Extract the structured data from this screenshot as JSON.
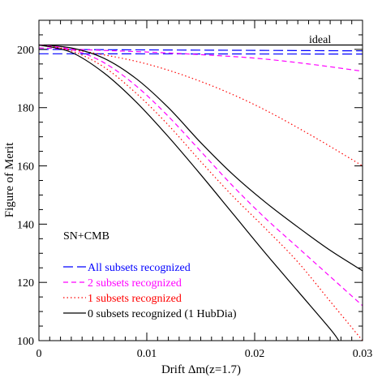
{
  "chart_data": {
    "type": "line",
    "xlabel": "Drift Δm(z=1.7)",
    "ylabel": "Figure of Merit",
    "xlim": [
      0,
      0.03
    ],
    "ylim": [
      100,
      210
    ],
    "x_ticks": [
      0,
      0.01,
      0.02,
      0.03
    ],
    "x_tick_labels": [
      "0",
      "0.01",
      "0.02",
      "0.03"
    ],
    "y_ticks": [
      100,
      120,
      140,
      160,
      180,
      200
    ],
    "y_tick_labels": [
      "100",
      "120",
      "140",
      "160",
      "180",
      "200"
    ],
    "grid": false,
    "annotations": {
      "ideal": "ideal",
      "probe": "SN+CMB"
    },
    "legend": {
      "placement": "bottom-left",
      "entries": [
        {
          "label": "All subsets recognized",
          "color": "#0000ff",
          "dash": "long-dash"
        },
        {
          "label": "2 subsets recognized",
          "color": "#ff00ff",
          "dash": "short-dash"
        },
        {
          "label": "1 subsets recognized",
          "color": "#ff0000",
          "dash": "dot"
        },
        {
          "label": "0 subsets recognized (1 HubDia)",
          "color": "#000000",
          "dash": "solid"
        }
      ]
    },
    "series": [
      {
        "color": "#000000",
        "dash": "solid",
        "x": [
          0,
          0.03
        ],
        "y": [
          201.5,
          201.5
        ]
      },
      {
        "color": "#0000ff",
        "dash": "long-dash",
        "x": [
          0,
          0.03
        ],
        "y": [
          200.0,
          199.5
        ]
      },
      {
        "color": "#0000ff",
        "dash": "long-dash",
        "x": [
          0,
          0.03
        ],
        "y": [
          198.5,
          198.4
        ]
      },
      {
        "color": "#ff00ff",
        "dash": "short-dash",
        "x": [
          0,
          0.005,
          0.01,
          0.015,
          0.02,
          0.025,
          0.03
        ],
        "y": [
          200.5,
          199.8,
          199.1,
          198.2,
          197.0,
          195.0,
          192.5
        ]
      },
      {
        "color": "#ff0000",
        "dash": "dot",
        "x": [
          0,
          0.005,
          0.01,
          0.015,
          0.02,
          0.025,
          0.03
        ],
        "y": [
          201.5,
          198.8,
          195.0,
          189.0,
          181.0,
          171.0,
          160.0
        ]
      },
      {
        "color": "#000000",
        "dash": "solid",
        "x": [
          0,
          0.003,
          0.006,
          0.009,
          0.012,
          0.015,
          0.018,
          0.021,
          0.024,
          0.027,
          0.03
        ],
        "y": [
          201.5,
          200.5,
          197.0,
          190.0,
          180.0,
          168.0,
          157.0,
          147.5,
          139.0,
          131.0,
          124.0
        ]
      },
      {
        "color": "#ff00ff",
        "dash": "short-dash",
        "x": [
          0,
          0.003,
          0.006,
          0.009,
          0.012,
          0.015,
          0.018,
          0.021,
          0.024,
          0.027,
          0.03
        ],
        "y": [
          201.5,
          200.0,
          195.5,
          187.5,
          177.0,
          165.0,
          153.0,
          142.0,
          132.0,
          122.0,
          112.0
        ]
      },
      {
        "color": "#ff0000",
        "dash": "dot",
        "x": [
          0,
          0.003,
          0.006,
          0.009,
          0.012,
          0.015,
          0.018,
          0.021,
          0.024,
          0.027,
          0.03
        ],
        "y": [
          201.5,
          199.5,
          194.0,
          185.0,
          174.0,
          161.5,
          149.5,
          138.5,
          127.0,
          113.5,
          100.0
        ]
      },
      {
        "color": "#000000",
        "dash": "solid",
        "x": [
          0,
          0.003,
          0.006,
          0.009,
          0.012,
          0.015,
          0.018,
          0.021,
          0.024,
          0.027,
          0.0278
        ],
        "y": [
          201.5,
          199.0,
          192.0,
          182.0,
          170.0,
          157.0,
          143.5,
          130.0,
          117.0,
          104.0,
          100.0
        ]
      }
    ]
  }
}
